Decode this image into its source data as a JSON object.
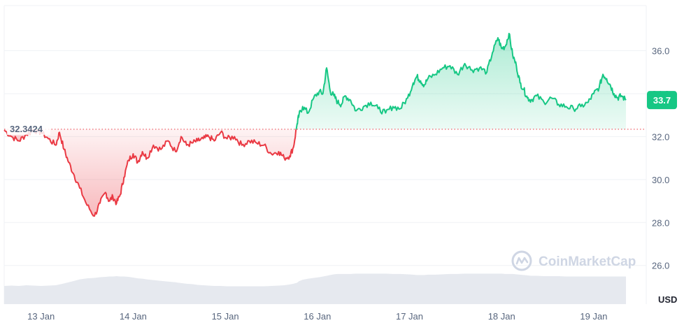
{
  "watermark": {
    "text": "CoinMarketCap",
    "icon": "coinmarketcap-logo-icon"
  },
  "colors": {
    "up_line": "#16c784",
    "down_line": "#ea3943",
    "up_fill": "#16c784",
    "down_fill": "#ea3943",
    "baseline": "#ea3943",
    "grid": "#eff2f5",
    "volume": "#e6e9ef",
    "badge_bg": "#16c784"
  },
  "chart_data": {
    "type": "area",
    "title": "",
    "xlabel": "",
    "ylabel": "USD",
    "ylim": [
      24.2,
      38.1
    ],
    "xlim": [
      12.6,
      19.57
    ],
    "y_ticks": [
      26.0,
      28.0,
      30.0,
      32.0,
      34.0,
      36.0
    ],
    "y_tick_labels": [
      "26.0",
      "28.0",
      "30.0",
      "32.0",
      "34.0",
      "36.0"
    ],
    "x_ticks": [
      13,
      14,
      15,
      16,
      17,
      18,
      19
    ],
    "x_tick_labels": [
      "13 Jan",
      "14 Jan",
      "15 Jan",
      "16 Jan",
      "17 Jan",
      "18 Jan",
      "19 Jan"
    ],
    "grid": true,
    "baseline": {
      "value": 32.3424,
      "label": "32.3424"
    },
    "current": {
      "value": 33.7,
      "label": "33.7"
    },
    "series": [
      {
        "x": [
          12.6,
          12.68,
          12.76,
          12.84,
          12.92,
          13.0,
          13.08,
          13.16,
          13.2,
          13.25,
          13.3,
          13.36,
          13.42,
          13.5,
          13.58,
          13.64,
          13.7,
          13.74,
          13.78,
          13.82,
          13.86,
          13.9,
          13.95,
          14.0,
          14.05,
          14.1,
          14.15,
          14.22,
          14.3,
          14.38,
          14.46,
          14.52,
          14.58,
          14.64,
          14.7,
          14.76,
          14.82,
          14.88,
          14.95,
          15.02,
          15.1,
          15.18,
          15.26,
          15.34,
          15.42,
          15.5,
          15.58,
          15.64,
          15.7,
          15.74,
          15.78,
          15.8,
          15.84,
          15.9,
          15.96,
          16.02,
          16.06,
          16.1,
          16.14,
          16.18,
          16.22,
          16.26,
          16.3,
          16.36,
          16.42,
          16.5,
          16.58,
          16.66,
          16.74,
          16.82,
          16.9,
          16.98,
          17.04,
          17.08,
          17.12,
          17.16,
          17.2,
          17.28,
          17.36,
          17.44,
          17.52,
          17.6,
          17.68,
          17.76,
          17.84,
          17.9,
          17.96,
          18.0,
          18.04,
          18.08,
          18.12,
          18.16,
          18.2,
          18.24,
          18.28,
          18.32,
          18.38,
          18.46,
          18.54,
          18.62,
          18.7,
          18.78,
          18.86,
          18.94,
          19.0,
          19.06,
          19.1,
          19.14,
          19.18,
          19.22,
          19.26,
          19.3,
          19.35
        ],
        "values": [
          32.3,
          32.0,
          31.8,
          32.1,
          32.3,
          32.2,
          31.9,
          31.6,
          32.2,
          31.4,
          30.8,
          30.2,
          29.6,
          28.8,
          28.3,
          28.9,
          29.4,
          29.0,
          29.2,
          28.9,
          29.3,
          30.1,
          30.9,
          31.2,
          30.8,
          31.3,
          31.0,
          31.6,
          31.4,
          31.8,
          31.3,
          32.0,
          31.6,
          31.7,
          31.8,
          31.9,
          32.0,
          31.8,
          32.2,
          31.9,
          32.0,
          31.6,
          31.8,
          31.7,
          31.6,
          31.2,
          31.3,
          31.0,
          31.1,
          31.5,
          32.6,
          33.0,
          33.4,
          33.1,
          33.8,
          34.1,
          34.0,
          35.2,
          34.1,
          33.9,
          33.6,
          33.5,
          33.9,
          33.7,
          33.2,
          33.4,
          33.6,
          33.3,
          33.1,
          33.4,
          33.3,
          33.8,
          34.5,
          34.8,
          34.6,
          34.4,
          34.7,
          34.9,
          35.2,
          35.3,
          34.9,
          35.4,
          35.1,
          35.2,
          35.0,
          35.9,
          36.6,
          36.1,
          36.2,
          36.8,
          35.8,
          35.3,
          34.5,
          34.2,
          33.8,
          33.7,
          33.9,
          33.6,
          33.8,
          33.5,
          33.4,
          33.3,
          33.4,
          33.6,
          34.0,
          34.3,
          34.9,
          34.7,
          34.4,
          34.0,
          33.8,
          33.9,
          33.7
        ],
        "volume": [
          5.0,
          5.1,
          5.0,
          5.2,
          5.1,
          5.0,
          5.1,
          5.2,
          5.4,
          5.7,
          6.0,
          6.4,
          6.8,
          7.1,
          7.2,
          7.4,
          7.5,
          7.6,
          7.6,
          7.7,
          7.6,
          7.6,
          7.5,
          7.3,
          7.1,
          7.0,
          6.8,
          6.6,
          6.4,
          6.2,
          6.0,
          5.8,
          5.6,
          5.5,
          5.3,
          5.2,
          5.1,
          5.0,
          5.0,
          4.9,
          4.9,
          4.9,
          4.9,
          4.9,
          4.9,
          5.0,
          5.1,
          5.2,
          5.4,
          5.6,
          5.9,
          6.3,
          6.7,
          7.0,
          7.2,
          7.4,
          7.6,
          7.8,
          8.0,
          8.2,
          8.3,
          8.3,
          8.3,
          8.3,
          8.4,
          8.4,
          8.4,
          8.4,
          8.4,
          8.3,
          8.3,
          8.2,
          8.1,
          8.0,
          8.0,
          8.0,
          8.1,
          8.1,
          8.2,
          8.3,
          8.3,
          8.4,
          8.4,
          8.4,
          8.4,
          8.4,
          8.4,
          8.4,
          8.3,
          8.3,
          8.3,
          8.2,
          8.1,
          8.0,
          7.9,
          7.8,
          7.8,
          7.7,
          7.7,
          7.7,
          7.6,
          7.6,
          7.6,
          7.6,
          7.6,
          7.6,
          7.6,
          7.6,
          7.6,
          7.6,
          7.6,
          7.6,
          7.6
        ]
      }
    ]
  }
}
